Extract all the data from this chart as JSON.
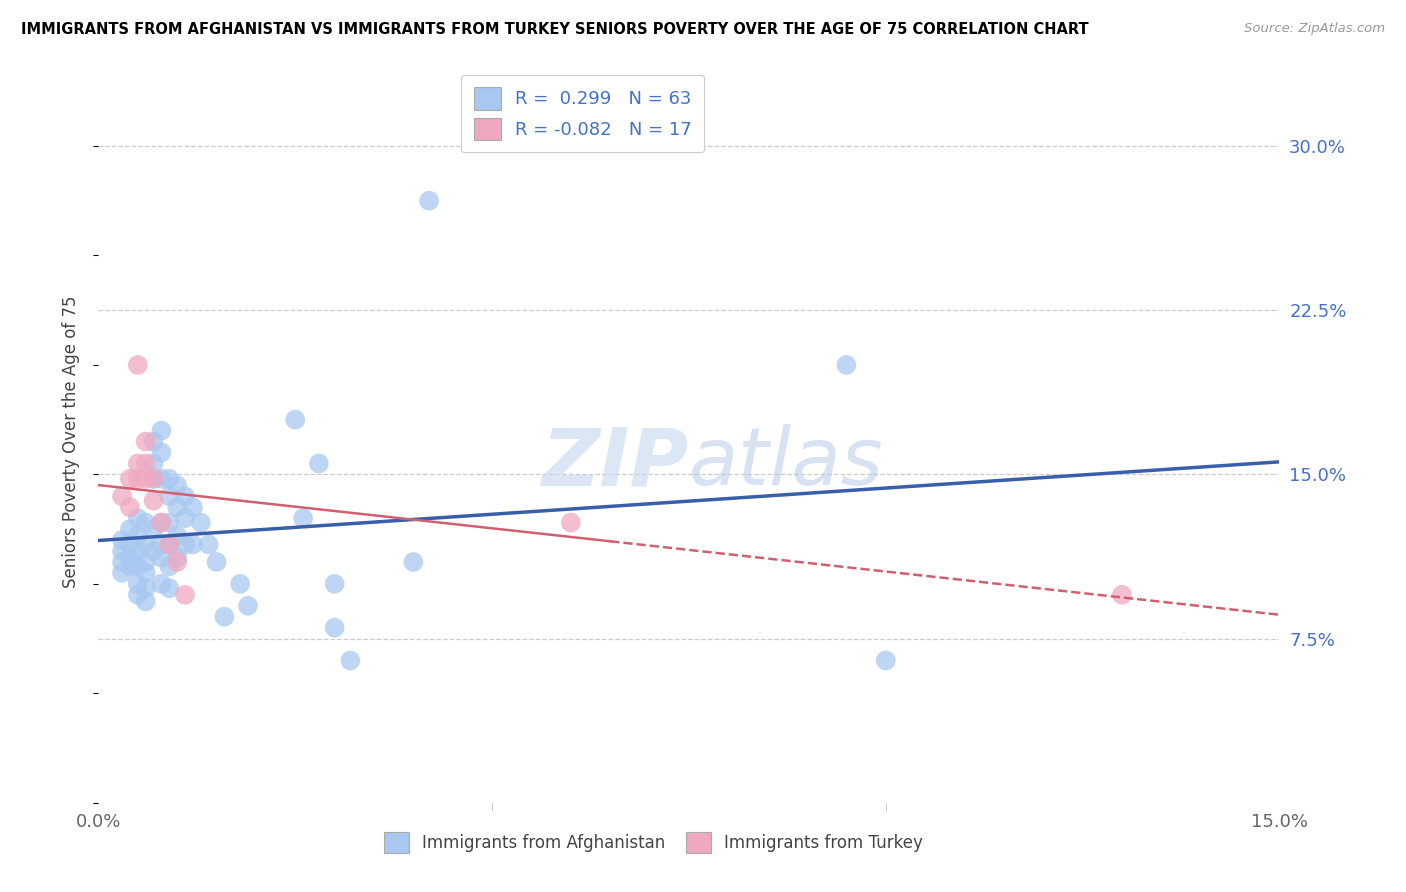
{
  "title": "IMMIGRANTS FROM AFGHANISTAN VS IMMIGRANTS FROM TURKEY SENIORS POVERTY OVER THE AGE OF 75 CORRELATION CHART",
  "source": "Source: ZipAtlas.com",
  "ylabel": "Seniors Poverty Over the Age of 75",
  "yticks": [
    "7.5%",
    "15.0%",
    "22.5%",
    "30.0%"
  ],
  "ytick_values": [
    0.075,
    0.15,
    0.225,
    0.3
  ],
  "xlim": [
    0.0,
    0.15
  ],
  "ylim": [
    0.0,
    0.33
  ],
  "legend_r1": "R =  0.299   N = 63",
  "legend_r2": "R = -0.082   N = 17",
  "color_afghanistan": "#a8c8f0",
  "color_turkey": "#f0a8c0",
  "line_color_afghanistan": "#3a5faa",
  "line_color_turkey": "#d06070",
  "watermark": "ZIPatlas",
  "afghanistan_scatter": [
    [
      0.003,
      0.12
    ],
    [
      0.003,
      0.115
    ],
    [
      0.003,
      0.11
    ],
    [
      0.003,
      0.105
    ],
    [
      0.004,
      0.125
    ],
    [
      0.004,
      0.118
    ],
    [
      0.004,
      0.112
    ],
    [
      0.004,
      0.108
    ],
    [
      0.005,
      0.13
    ],
    [
      0.005,
      0.122
    ],
    [
      0.005,
      0.115
    ],
    [
      0.005,
      0.108
    ],
    [
      0.005,
      0.1
    ],
    [
      0.005,
      0.095
    ],
    [
      0.006,
      0.128
    ],
    [
      0.006,
      0.118
    ],
    [
      0.006,
      0.11
    ],
    [
      0.006,
      0.105
    ],
    [
      0.006,
      0.098
    ],
    [
      0.006,
      0.092
    ],
    [
      0.007,
      0.165
    ],
    [
      0.007,
      0.155
    ],
    [
      0.007,
      0.148
    ],
    [
      0.007,
      0.125
    ],
    [
      0.007,
      0.115
    ],
    [
      0.008,
      0.17
    ],
    [
      0.008,
      0.16
    ],
    [
      0.008,
      0.148
    ],
    [
      0.008,
      0.128
    ],
    [
      0.008,
      0.118
    ],
    [
      0.008,
      0.112
    ],
    [
      0.008,
      0.1
    ],
    [
      0.009,
      0.148
    ],
    [
      0.009,
      0.14
    ],
    [
      0.009,
      0.128
    ],
    [
      0.009,
      0.118
    ],
    [
      0.009,
      0.108
    ],
    [
      0.009,
      0.098
    ],
    [
      0.01,
      0.145
    ],
    [
      0.01,
      0.135
    ],
    [
      0.01,
      0.122
    ],
    [
      0.01,
      0.112
    ],
    [
      0.011,
      0.14
    ],
    [
      0.011,
      0.13
    ],
    [
      0.011,
      0.118
    ],
    [
      0.012,
      0.135
    ],
    [
      0.012,
      0.118
    ],
    [
      0.013,
      0.128
    ],
    [
      0.014,
      0.118
    ],
    [
      0.015,
      0.11
    ],
    [
      0.016,
      0.085
    ],
    [
      0.018,
      0.1
    ],
    [
      0.019,
      0.09
    ],
    [
      0.025,
      0.175
    ],
    [
      0.026,
      0.13
    ],
    [
      0.028,
      0.155
    ],
    [
      0.03,
      0.1
    ],
    [
      0.03,
      0.08
    ],
    [
      0.032,
      0.065
    ],
    [
      0.04,
      0.11
    ],
    [
      0.042,
      0.275
    ],
    [
      0.095,
      0.2
    ],
    [
      0.1,
      0.065
    ]
  ],
  "turkey_scatter": [
    [
      0.003,
      0.14
    ],
    [
      0.004,
      0.148
    ],
    [
      0.004,
      0.135
    ],
    [
      0.005,
      0.2
    ],
    [
      0.005,
      0.155
    ],
    [
      0.005,
      0.148
    ],
    [
      0.006,
      0.165
    ],
    [
      0.006,
      0.155
    ],
    [
      0.006,
      0.148
    ],
    [
      0.007,
      0.148
    ],
    [
      0.007,
      0.138
    ],
    [
      0.008,
      0.128
    ],
    [
      0.009,
      0.118
    ],
    [
      0.01,
      0.11
    ],
    [
      0.011,
      0.095
    ],
    [
      0.06,
      0.128
    ],
    [
      0.13,
      0.095
    ]
  ]
}
